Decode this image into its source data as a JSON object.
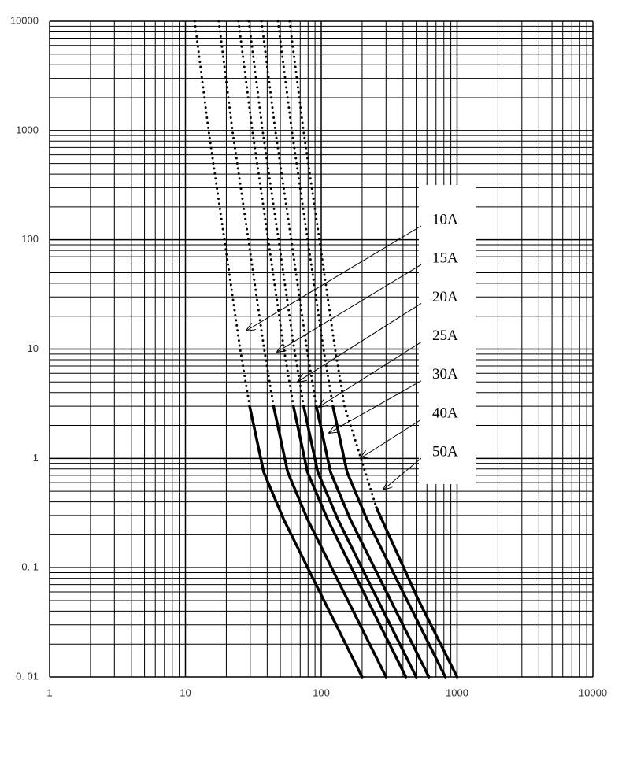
{
  "chart_data": {
    "type": "line",
    "log_x": true,
    "log_y": true,
    "grid": true,
    "minor_grid": true,
    "xlim": [
      1,
      10000
    ],
    "ylim": [
      0.01,
      10000
    ],
    "xticks": [
      1,
      10,
      100,
      1000,
      10000
    ],
    "yticks": [
      {
        "value": 0.01,
        "label": "0. 01"
      },
      {
        "value": 0.1,
        "label": "0. 1"
      },
      1,
      10,
      100,
      1000,
      10000
    ],
    "series": [
      {
        "name": "10A",
        "color": "#000000",
        "dotted": {
          "x": [
            11.7,
            14.8,
            19.4,
            25.3,
            29.7
          ],
          "values": [
            10000,
            1000,
            100,
            10,
            3
          ]
        },
        "solid": {
          "x": [
            29.7,
            37.7,
            52.7,
            90,
            200
          ],
          "values": [
            3,
            0.75,
            0.28,
            0.073,
            0.01
          ]
        }
      },
      {
        "name": "15A",
        "color": "#000000",
        "dotted": {
          "x": [
            17.6,
            22.2,
            29.1,
            38,
            44.6
          ],
          "values": [
            10000,
            1000,
            100,
            10,
            3
          ]
        },
        "solid": {
          "x": [
            44.6,
            56.6,
            79,
            135,
            300
          ],
          "values": [
            3,
            0.75,
            0.28,
            0.073,
            0.01
          ]
        }
      },
      {
        "name": "20A",
        "color": "#000000",
        "dotted": {
          "x": [
            24.6,
            31.1,
            40.7,
            53.1,
            62.4
          ],
          "values": [
            10000,
            1000,
            100,
            10,
            3
          ]
        },
        "solid": {
          "x": [
            62.4,
            79.2,
            111,
            189,
            420
          ],
          "values": [
            3,
            0.75,
            0.28,
            0.073,
            0.01
          ]
        }
      },
      {
        "name": "25A",
        "color": "#000000",
        "dotted": {
          "x": [
            29.3,
            37,
            48.5,
            63.3,
            74.3
          ],
          "values": [
            10000,
            1000,
            100,
            10,
            3
          ]
        },
        "solid": {
          "x": [
            74.3,
            94.3,
            132,
            225,
            500
          ],
          "values": [
            3,
            0.75,
            0.28,
            0.073,
            0.01
          ]
        }
      },
      {
        "name": "30A",
        "color": "#000000",
        "dotted": {
          "x": [
            36.3,
            45.9,
            60.1,
            78.4,
            92
          ],
          "values": [
            10000,
            1000,
            100,
            10,
            3
          ]
        },
        "solid": {
          "x": [
            92,
            117,
            163,
            279,
            620
          ],
          "values": [
            3,
            0.75,
            0.28,
            0.073,
            0.01
          ]
        }
      },
      {
        "name": "40A",
        "color": "#000000",
        "dotted": {
          "x": [
            48,
            60.7,
            79.5,
            104,
            122
          ],
          "values": [
            10000,
            1000,
            100,
            10,
            3
          ]
        },
        "solid": {
          "x": [
            122,
            155,
            216,
            369,
            820
          ],
          "values": [
            3,
            0.75,
            0.28,
            0.073,
            0.01
          ]
        }
      },
      {
        "name": "50A",
        "color": "#000000",
        "dotted": {
          "x": [
            58.5,
            74,
            97,
            126.5,
            148.5,
            255
          ],
          "values": [
            10000,
            1000,
            100,
            10,
            3,
            0.354
          ]
        },
        "solid": {
          "x": [
            255,
            510,
            1000
          ],
          "values": [
            0.354,
            0.053,
            0.01
          ]
        }
      }
    ]
  }
}
